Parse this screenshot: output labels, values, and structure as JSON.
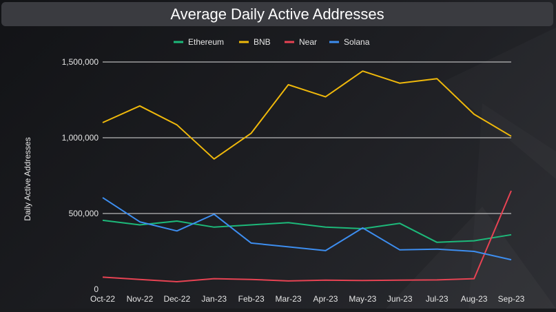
{
  "chart_data": {
    "type": "line",
    "title": "Average Daily Active Addresses",
    "ylabel": "Daily Active Addresses",
    "xlabel": "",
    "categories": [
      "Oct-22",
      "Nov-22",
      "Dec-22",
      "Jan-23",
      "Feb-23",
      "Mar-23",
      "Apr-23",
      "May-23",
      "Jun-23",
      "Jul-23",
      "Aug-23",
      "Sep-23"
    ],
    "ylim": [
      0,
      1500000
    ],
    "yticks": [
      0,
      500000,
      1000000,
      1500000
    ],
    "ytick_labels": [
      "0",
      "500,000",
      "1,000,000",
      "1,500,000"
    ],
    "grid": "horizontal",
    "legend_position": "top-center",
    "series": [
      {
        "name": "Ethereum",
        "color": "#1db97a",
        "values": [
          455000,
          425000,
          450000,
          410000,
          425000,
          440000,
          410000,
          400000,
          435000,
          310000,
          320000,
          360000
        ]
      },
      {
        "name": "BNB",
        "color": "#f0b90b",
        "values": [
          1100000,
          1210000,
          1085000,
          860000,
          1030000,
          1350000,
          1270000,
          1440000,
          1360000,
          1390000,
          1155000,
          1010000
        ]
      },
      {
        "name": "Near",
        "color": "#e84353",
        "values": [
          80000,
          65000,
          50000,
          70000,
          65000,
          55000,
          60000,
          58000,
          60000,
          62000,
          70000,
          650000
        ]
      },
      {
        "name": "Solana",
        "color": "#3d8ef0",
        "values": [
          605000,
          445000,
          385000,
          495000,
          305000,
          280000,
          255000,
          405000,
          260000,
          265000,
          250000,
          195000
        ]
      }
    ]
  }
}
